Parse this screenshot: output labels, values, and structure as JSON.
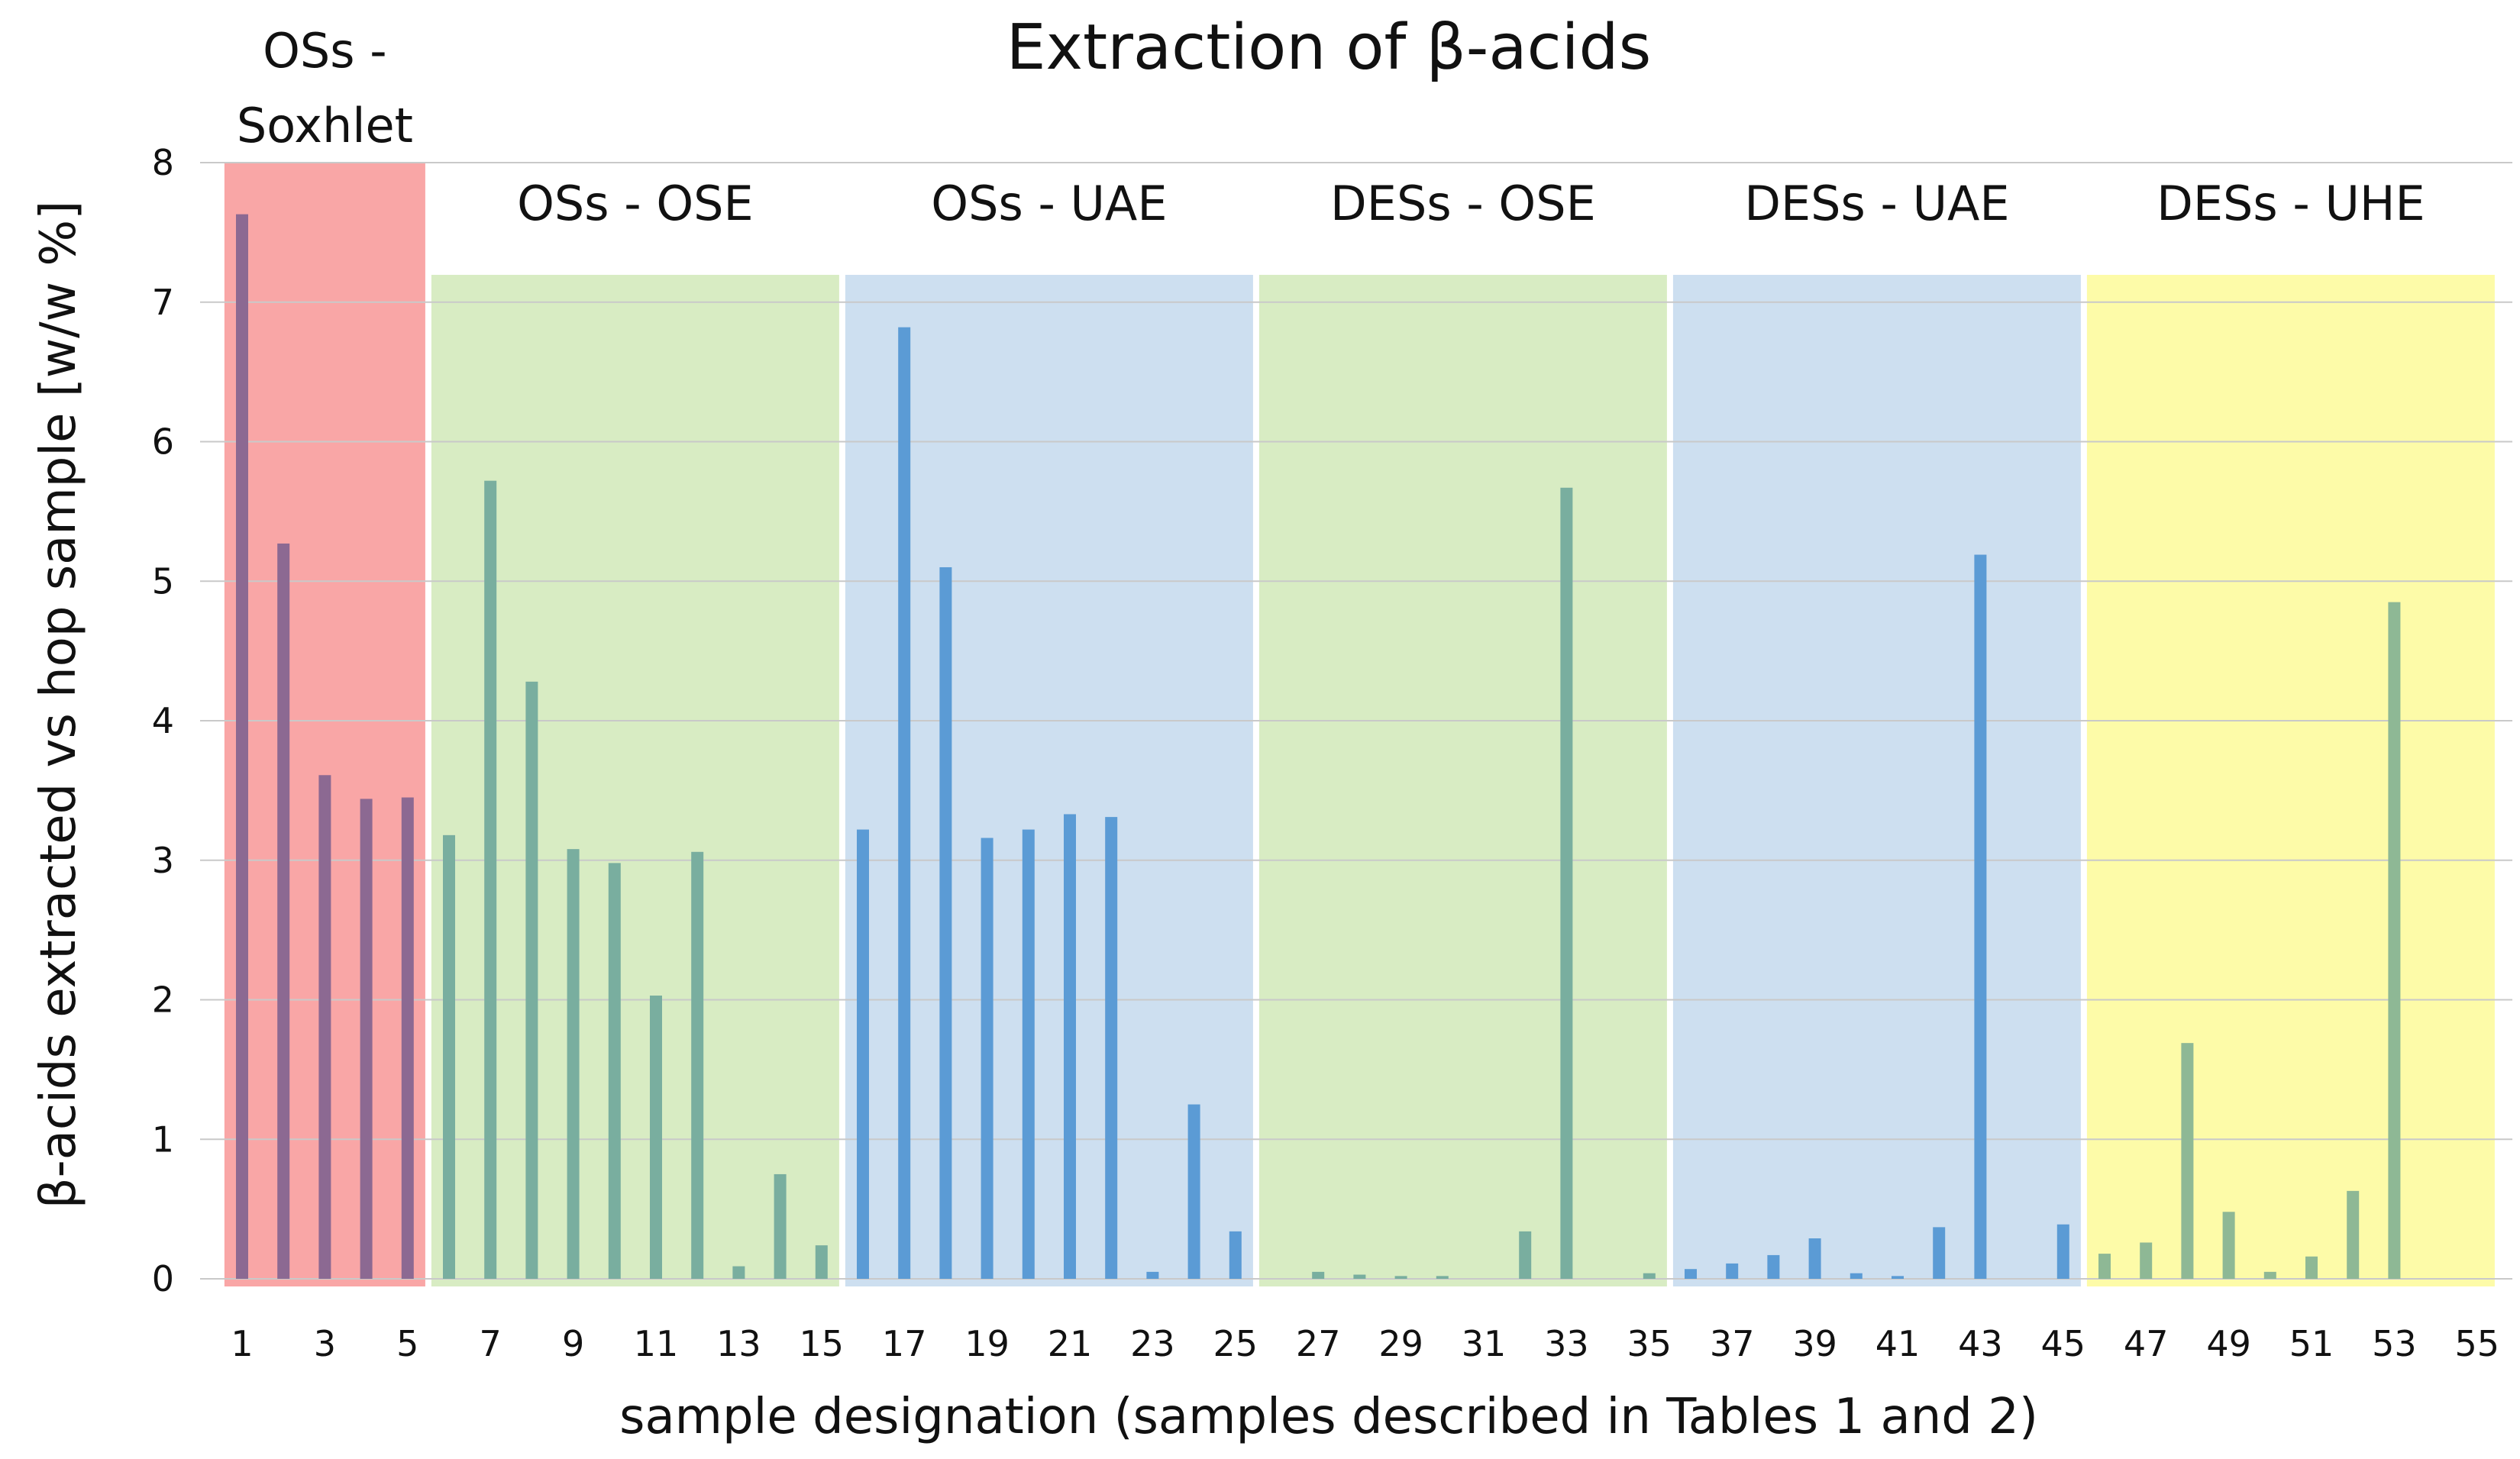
{
  "chart_data": {
    "type": "bar",
    "title": "Extraction of β-acids",
    "xlabel": "sample designation (samples described in Tables 1 and 2)",
    "ylabel": "β-acids extracted vs hop sample [w/w %]",
    "ylim": [
      0,
      8
    ],
    "yticks": [
      "0",
      "1",
      "2",
      "3",
      "4",
      "5",
      "6",
      "7",
      "8"
    ],
    "xticks": [
      "1",
      "3",
      "5",
      "7",
      "9",
      "11",
      "13",
      "15",
      "17",
      "19",
      "21",
      "23",
      "25",
      "27",
      "29",
      "31",
      "33",
      "35",
      "37",
      "39",
      "41",
      "43",
      "45",
      "47",
      "49",
      "51",
      "53",
      "55"
    ],
    "grid": true,
    "categories": [
      1,
      2,
      3,
      4,
      5,
      6,
      7,
      8,
      9,
      10,
      11,
      12,
      13,
      14,
      15,
      16,
      17,
      18,
      19,
      20,
      21,
      22,
      23,
      24,
      25,
      26,
      27,
      28,
      29,
      30,
      31,
      32,
      33,
      34,
      35,
      36,
      37,
      38,
      39,
      40,
      41,
      42,
      43,
      44,
      45,
      46,
      47,
      48,
      49,
      50,
      51,
      52,
      53,
      54,
      55
    ],
    "values": [
      7.63,
      5.27,
      3.61,
      3.44,
      3.45,
      3.18,
      5.72,
      4.28,
      3.08,
      2.98,
      2.03,
      3.06,
      0.09,
      0.75,
      0.24,
      3.22,
      6.82,
      5.1,
      3.16,
      3.22,
      3.33,
      3.31,
      0.05,
      1.25,
      0.34,
      0,
      0.05,
      0.03,
      0.02,
      0.02,
      0,
      0.34,
      5.67,
      0,
      0.04,
      0.07,
      0.11,
      0.17,
      0.29,
      0.04,
      0.02,
      0.37,
      5.19,
      0,
      0.39,
      0.18,
      0.26,
      1.69,
      0.48,
      0.05,
      0.16,
      0.63,
      4.85,
      0,
      0
    ],
    "groups": [
      {
        "label_lines": [
          "OSs -",
          "Soxhlet"
        ],
        "from": 1,
        "to": 5,
        "color": "#f9a6a6",
        "bar_color": "#8c6992"
      },
      {
        "label_lines": [
          "OSs - OSE"
        ],
        "from": 6,
        "to": 15,
        "color": "#d8ecc3",
        "bar_color": "#79ae9f"
      },
      {
        "label_lines": [
          "OSs - UAE"
        ],
        "from": 16,
        "to": 25,
        "color": "#cddff0",
        "bar_color": "#5b9bd5"
      },
      {
        "label_lines": [
          "DESs - OSE"
        ],
        "from": 26,
        "to": 35,
        "color": "#d8ecc3",
        "bar_color": "#79ae9f"
      },
      {
        "label_lines": [
          "DESs - UAE"
        ],
        "from": 36,
        "to": 45,
        "color": "#cddff0",
        "bar_color": "#5b9bd5"
      },
      {
        "label_lines": [
          "DESs - UHE"
        ],
        "from": 46,
        "to": 55,
        "color": "#fdfba8",
        "bar_color": "#8eb895"
      }
    ]
  }
}
